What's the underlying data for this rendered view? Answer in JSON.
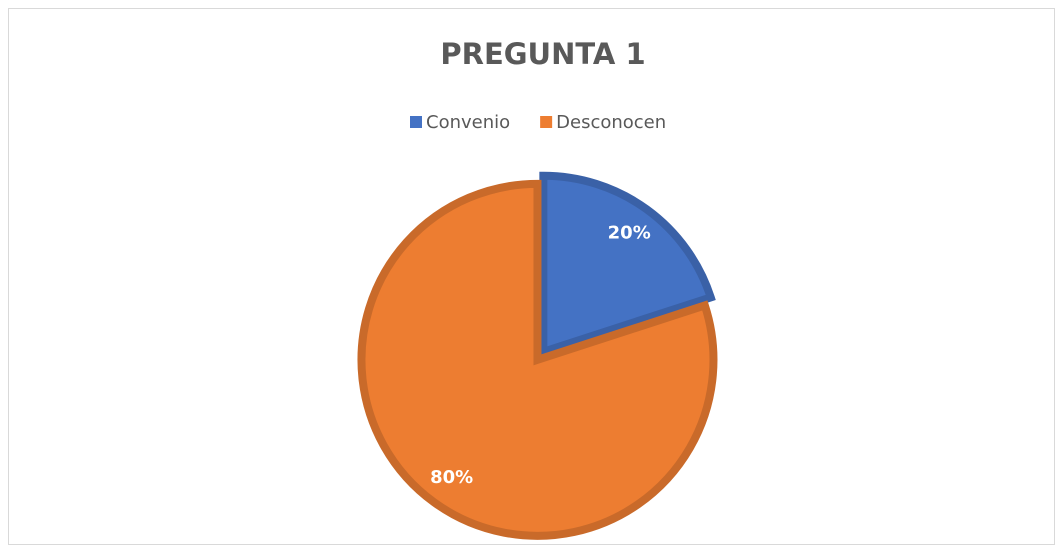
{
  "chart_data": {
    "type": "pie",
    "title": "PREGUNTA 1",
    "categories": [
      "Convenio",
      "Desconocen"
    ],
    "values": [
      20,
      80
    ],
    "value_labels": [
      "20%",
      "80%"
    ],
    "colors": [
      "#4472c4",
      "#ed7d31"
    ],
    "legend": "top"
  }
}
